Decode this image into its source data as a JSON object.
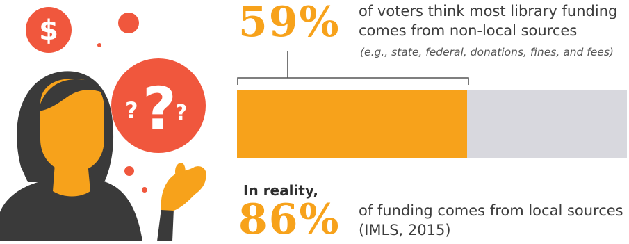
{
  "colors": {
    "accent": "#f7a21b",
    "coral": "#f0573d",
    "bar_track": "#d8d8de",
    "text": "#3d3d3d",
    "hair": "#3a3a3a"
  },
  "icons": {
    "dollar": "dollar-icon",
    "question": "question-marks-icon"
  },
  "illustration": {
    "dollar_symbol": "$",
    "question_symbols": [
      "?",
      "?",
      "?"
    ]
  },
  "stat_perception": {
    "value": "59%",
    "description": "of voters think most library funding comes from non-local sources",
    "note": "(e.g., state, federal, donations, fines, and fees)"
  },
  "stat_reality": {
    "intro": "In reality,",
    "value": "86%",
    "description": "of funding comes from local sources (IMLS, 2015)"
  },
  "chart_data": {
    "type": "bar",
    "orientation": "horizontal",
    "percent": 59,
    "max": 100
  }
}
